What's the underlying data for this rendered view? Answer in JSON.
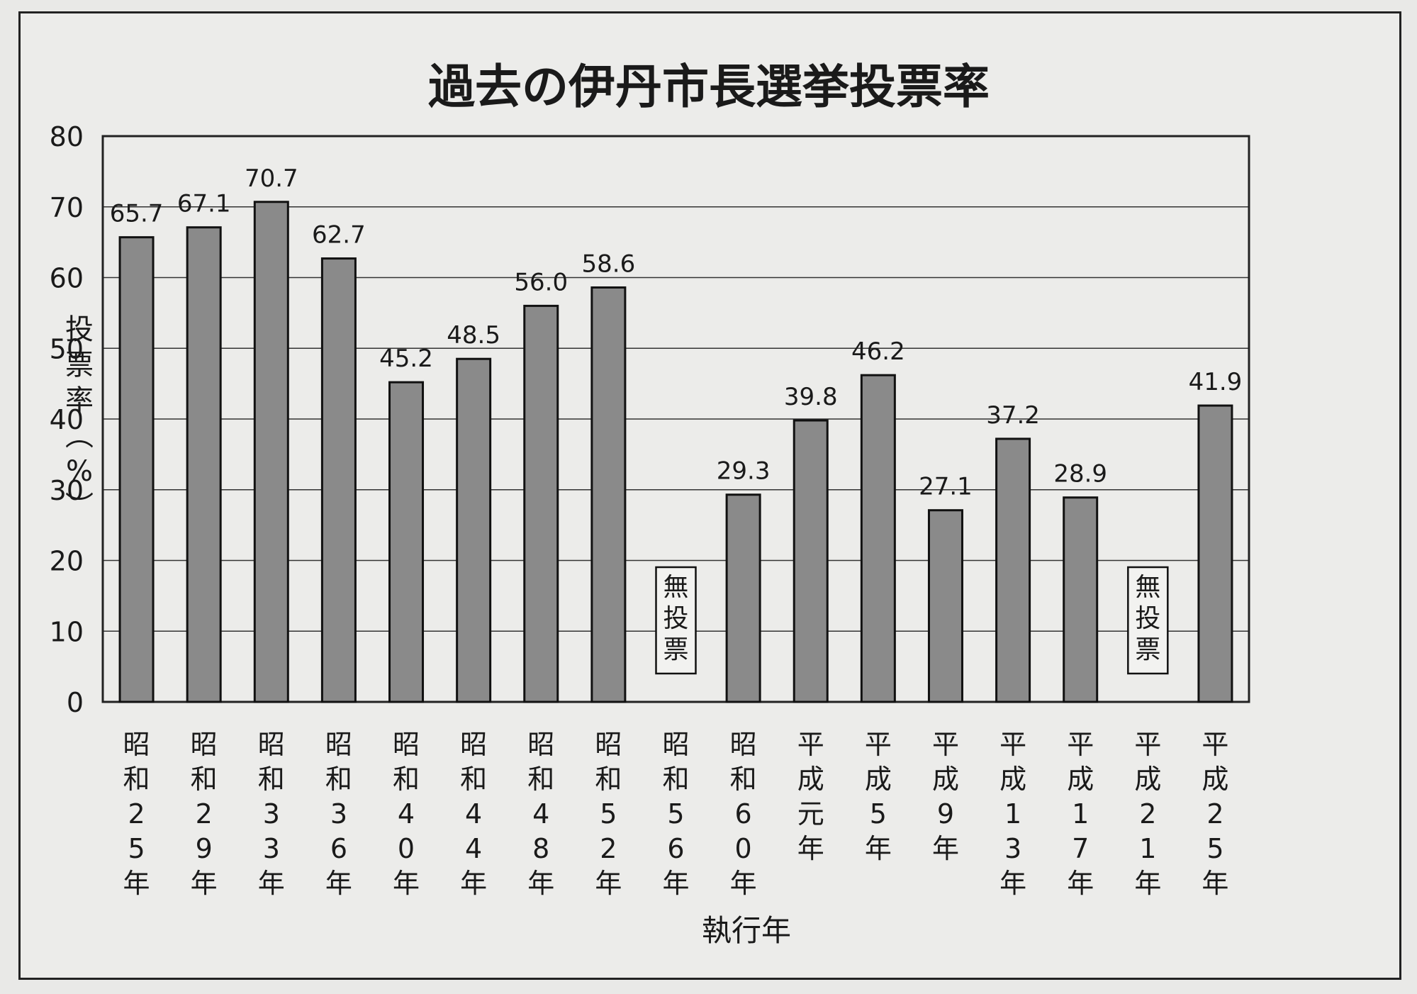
{
  "chart_data": {
    "type": "bar",
    "title": "過去の伊丹市長選挙投票率",
    "ylabel": "投票率（%）",
    "xlabel": "執行年",
    "ylim": [
      0,
      80
    ],
    "yticks": [
      0,
      10,
      20,
      30,
      40,
      50,
      60,
      70,
      80
    ],
    "grid": true,
    "bar_color": "#8a8a8a",
    "categories": [
      "昭和25年",
      "昭和29年",
      "昭和33年",
      "昭和36年",
      "昭和40年",
      "昭和44年",
      "昭和48年",
      "昭和52年",
      "昭和56年",
      "昭和60年",
      "平成元年",
      "平成5年",
      "平成9年",
      "平成13年",
      "平成17年",
      "平成21年",
      "平成25年"
    ],
    "values": [
      65.7,
      67.1,
      70.7,
      62.7,
      45.2,
      48.5,
      56.0,
      58.6,
      null,
      29.3,
      39.8,
      46.2,
      27.1,
      37.2,
      28.9,
      null,
      41.9
    ],
    "value_labels": [
      "65.7",
      "67.1",
      "70.7",
      "62.7",
      "45.2",
      "48.5",
      "56.0",
      "58.6",
      "",
      "29.3",
      "39.8",
      "46.2",
      "27.1",
      "37.2",
      "28.9",
      "",
      "41.9"
    ],
    "annotations": [
      "",
      "",
      "",
      "",
      "",
      "",
      "",
      "",
      "無投票",
      "",
      "",
      "",
      "",
      "",
      "",
      "無投票",
      ""
    ]
  }
}
